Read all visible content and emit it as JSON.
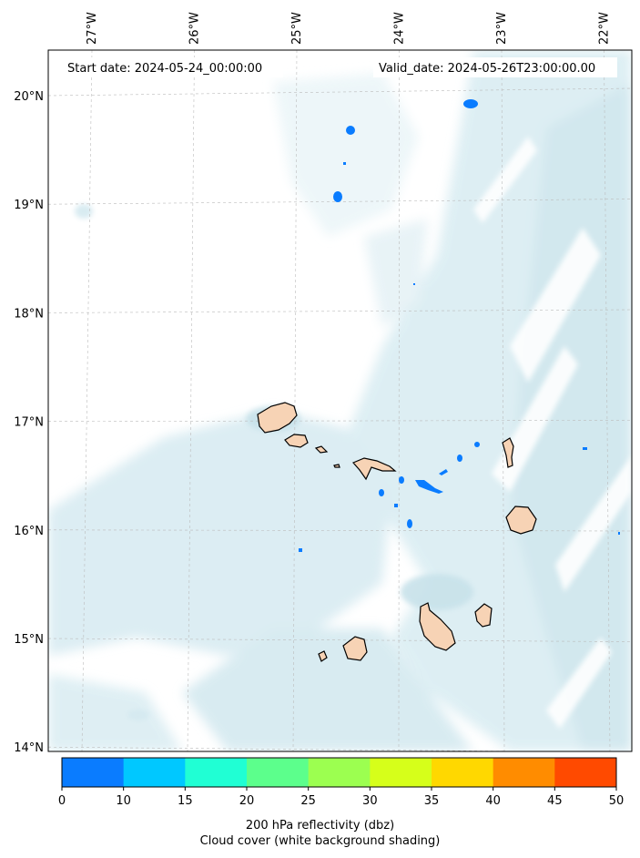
{
  "header": {
    "start_date": "Start date: 2024-05-24_00:00:00",
    "valid_date": "Valid_date: 2024-05-26T23:00:00.00"
  },
  "axes": {
    "lon_labels": [
      "27°W",
      "26°W",
      "25°W",
      "24°W",
      "23°W",
      "22°W"
    ],
    "lon_values": [
      -27,
      -26,
      -25,
      -24,
      -23,
      -22
    ],
    "lat_labels": [
      "20°N",
      "19°N",
      "18°N",
      "17°N",
      "16°N",
      "15°N",
      "14°N"
    ],
    "lat_values": [
      20,
      19,
      18,
      17,
      16,
      15,
      14
    ],
    "gridlines": true
  },
  "colorbar": {
    "ticks": [
      "0",
      "10",
      "15",
      "20",
      "25",
      "30",
      "35",
      "40",
      "45",
      "50"
    ],
    "colors": [
      "#0a7cff",
      "#00c8ff",
      "#20ffd4",
      "#5cff8c",
      "#9cff50",
      "#d6ff1a",
      "#ffd800",
      "#ff8c00",
      "#ff4a00"
    ],
    "label_line1": "200 hPa reflectivity (dbz)",
    "label_line2": "Cloud cover (white background shading)"
  },
  "colors": {
    "land": "#f7d3b5",
    "cloud": "#cde6ee",
    "echo": "#0a7cff"
  }
}
